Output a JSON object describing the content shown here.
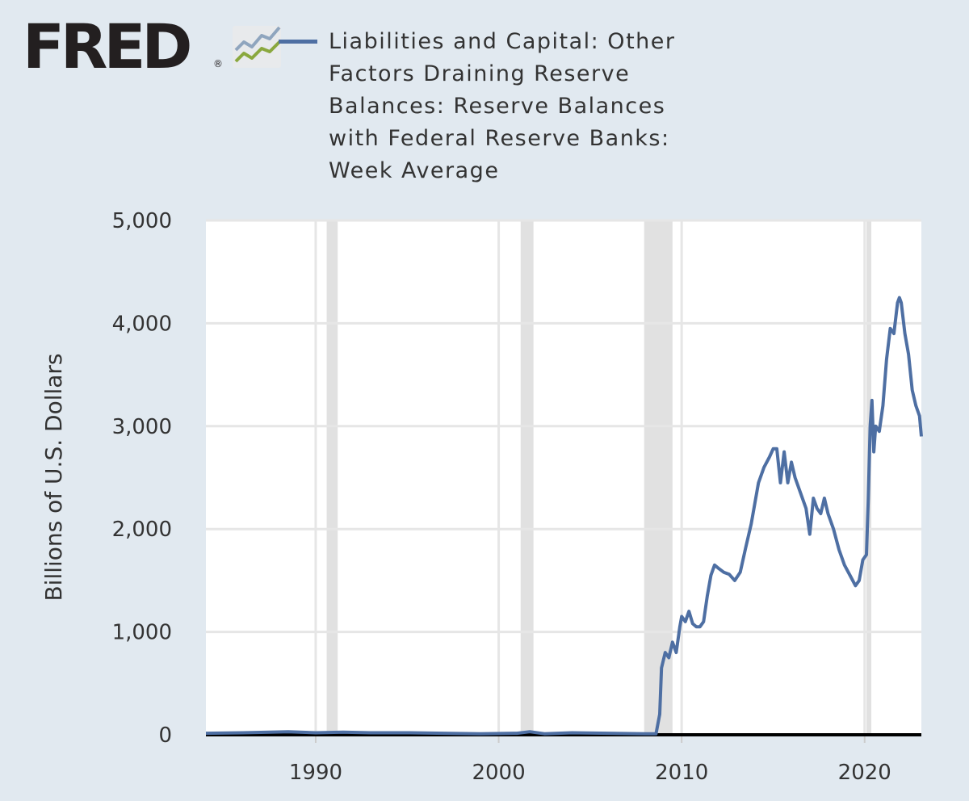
{
  "logo": {
    "text": "FRED",
    "registered": "®"
  },
  "legend": {
    "label": "Liabilities and Capital: Other Factors Draining Reserve Balances: Reserve Balances with Federal Reserve Banks: Week Average",
    "color": "#4e6fa3"
  },
  "chart_data": {
    "type": "line",
    "title": "",
    "xlabel": "",
    "ylabel": "Billions of U.S. Dollars",
    "xlim": [
      1984.0,
      2023.1
    ],
    "ylim": [
      0,
      5000
    ],
    "xticks": [
      1990,
      2000,
      2010,
      2020
    ],
    "yticks": [
      0,
      1000,
      2000,
      3000,
      4000,
      5000
    ],
    "ytick_labels": [
      "0",
      "1,000",
      "2,000",
      "3,000",
      "4,000",
      "5,000"
    ],
    "grid": true,
    "recessions": [
      [
        1990.6,
        1991.2
      ],
      [
        2001.2,
        2001.9
      ],
      [
        2007.95,
        2009.5
      ],
      [
        2020.1,
        2020.35
      ]
    ],
    "series": [
      {
        "name": "Liabilities and Capital: Other Factors Draining Reserve Balances: Reserve Balances with Federal Reserve Banks: Week Average",
        "color": "#4e6fa3",
        "x": [
          1984.0,
          1986.0,
          1987.5,
          1988.5,
          1990.0,
          1991.5,
          1993.0,
          1995.0,
          1997.0,
          1999.0,
          2001.0,
          2001.7,
          2002.5,
          2004.0,
          2006.0,
          2008.0,
          2008.6,
          2008.8,
          2008.9,
          2009.1,
          2009.3,
          2009.5,
          2009.7,
          2009.9,
          2010.0,
          2010.2,
          2010.4,
          2010.6,
          2010.8,
          2011.0,
          2011.2,
          2011.4,
          2011.6,
          2011.8,
          2012.0,
          2012.3,
          2012.6,
          2012.9,
          2013.2,
          2013.5,
          2013.8,
          2014.0,
          2014.2,
          2014.5,
          2014.8,
          2015.0,
          2015.2,
          2015.4,
          2015.6,
          2015.8,
          2016.0,
          2016.2,
          2016.5,
          2016.8,
          2017.0,
          2017.2,
          2017.4,
          2017.6,
          2017.8,
          2018.0,
          2018.3,
          2018.6,
          2018.9,
          2019.2,
          2019.5,
          2019.7,
          2019.9,
          2020.1,
          2020.2,
          2020.3,
          2020.4,
          2020.5,
          2020.6,
          2020.8,
          2021.0,
          2021.2,
          2021.4,
          2021.6,
          2021.8,
          2021.9,
          2022.0,
          2022.2,
          2022.4,
          2022.6,
          2022.8,
          2023.0,
          2023.1
        ],
        "y": [
          15,
          20,
          25,
          30,
          20,
          25,
          20,
          20,
          15,
          10,
          15,
          30,
          10,
          20,
          15,
          10,
          10,
          200,
          650,
          800,
          750,
          900,
          800,
          1050,
          1150,
          1100,
          1200,
          1080,
          1050,
          1050,
          1100,
          1350,
          1550,
          1650,
          1620,
          1580,
          1560,
          1500,
          1580,
          1820,
          2050,
          2250,
          2450,
          2600,
          2700,
          2780,
          2780,
          2450,
          2750,
          2450,
          2650,
          2500,
          2350,
          2200,
          1950,
          2300,
          2200,
          2150,
          2300,
          2150,
          2000,
          1800,
          1650,
          1550,
          1450,
          1500,
          1700,
          1750,
          2300,
          3000,
          3250,
          2750,
          3000,
          2950,
          3200,
          3650,
          3950,
          3900,
          4200,
          4250,
          4200,
          3900,
          3700,
          3350,
          3200,
          3100,
          2900
        ]
      }
    ]
  }
}
